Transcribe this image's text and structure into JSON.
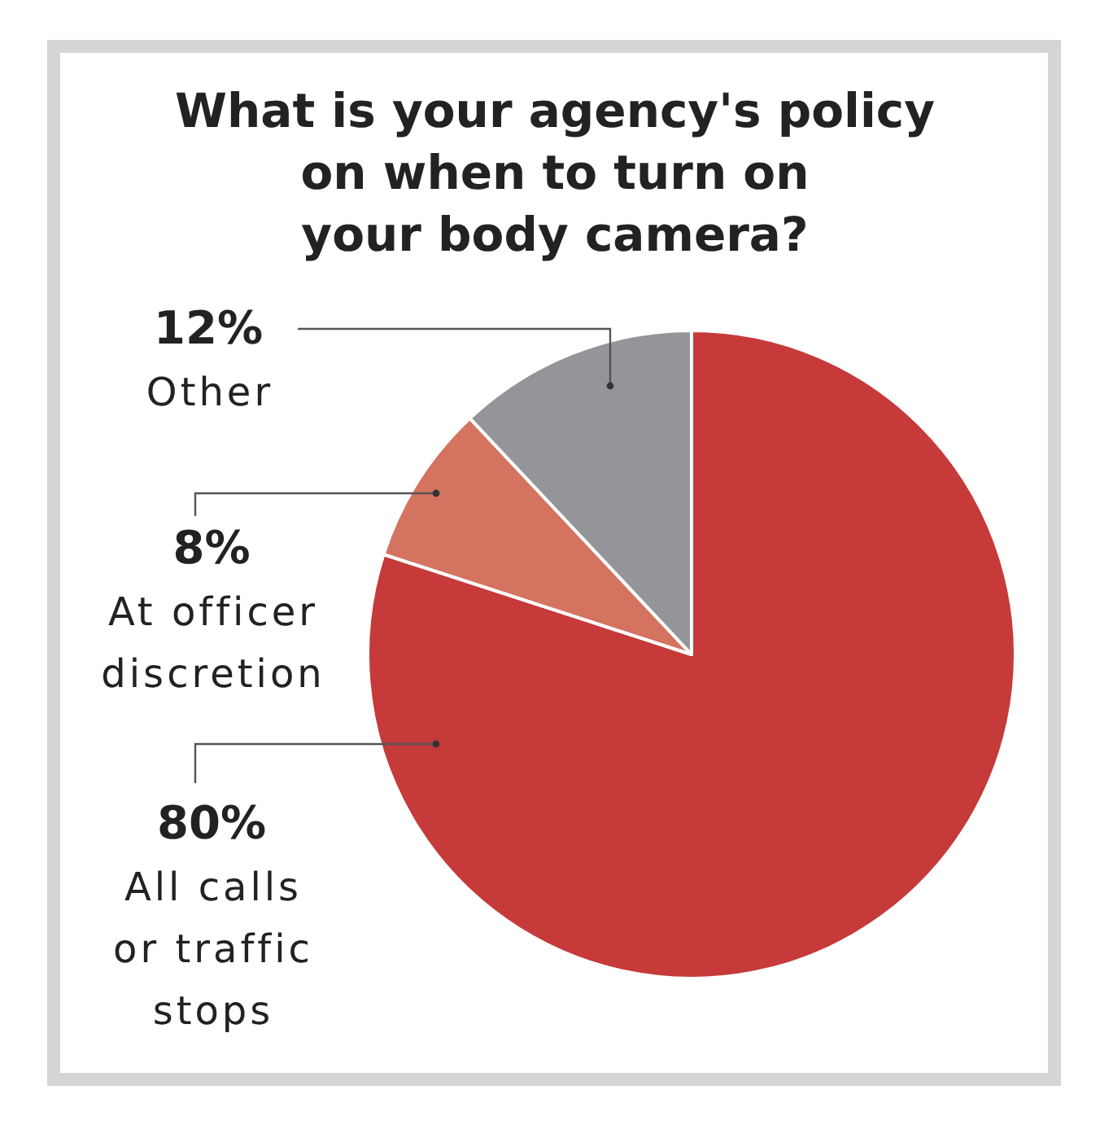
{
  "chart_data": {
    "type": "pie",
    "title": "What is your agency's policy\non when to turn on\nyour body camera?",
    "categories": [
      "All calls or traffic stops",
      "At officer discretion",
      "Other"
    ],
    "values": [
      80,
      8,
      12
    ],
    "colors": [
      "#c63a3a",
      "#d4735f",
      "#939598"
    ],
    "value_labels": [
      "80%",
      "8%",
      "12%"
    ]
  }
}
